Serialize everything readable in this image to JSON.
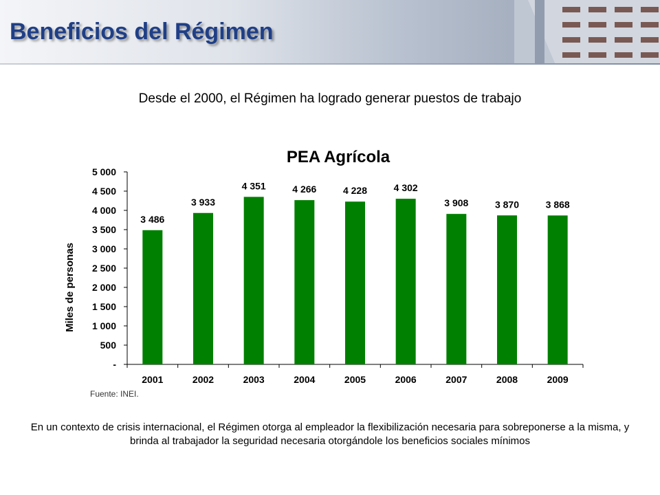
{
  "header": {
    "title": "Beneficios del Régimen"
  },
  "subtitle": "Desde el 2000, el Régimen ha logrado generar puestos de trabajo",
  "chart_data": {
    "type": "bar",
    "title": "PEA Agrícola",
    "xlabel": "",
    "ylabel": "Miles de personas",
    "categories": [
      "2001",
      "2002",
      "2003",
      "2004",
      "2005",
      "2006",
      "2007",
      "2008",
      "2009"
    ],
    "values": [
      3486,
      3933,
      4351,
      4266,
      4228,
      4302,
      3908,
      3870,
      3868
    ],
    "data_labels": [
      "3 486",
      "3 933",
      "4 351",
      "4 266",
      "4 228",
      "4 302",
      "3 908",
      "3 870",
      "3 868"
    ],
    "ylim": [
      0,
      5000
    ],
    "yticks": [
      0,
      500,
      1000,
      1500,
      2000,
      2500,
      3000,
      3500,
      4000,
      4500,
      5000
    ],
    "ytick_labels": [
      "-",
      "500",
      "1 000",
      "1 500",
      "2 000",
      "2 500",
      "3 000",
      "3 500",
      "4 000",
      "4 500",
      "5 000"
    ],
    "grid": false,
    "legend": "none",
    "bar_color": "#008000"
  },
  "source": "Fuente: INEI.",
  "footnote": "En un contexto de crisis internacional, el Régimen otorga al empleador la flexibilización necesaria para sobreponerse a la misma, y brinda al trabajador la seguridad necesaria otorgándole los beneficios sociales mínimos"
}
